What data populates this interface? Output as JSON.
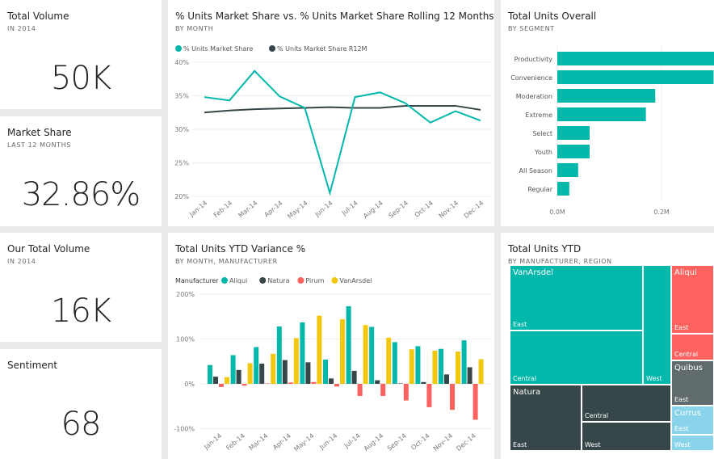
{
  "kpis": [
    {
      "title": "Total Volume",
      "subtitle": "IN 2014",
      "value": "50K"
    },
    {
      "title": "Market Share",
      "subtitle": "LAST 12 MONTHS",
      "value": "32.86%"
    },
    {
      "title": "Our Total Volume",
      "subtitle": "IN 2014",
      "value": "16K"
    },
    {
      "title": "Sentiment",
      "subtitle": "",
      "value": "68"
    }
  ],
  "colors": {
    "teal": "#01b8aa",
    "dark": "#374649",
    "red": "#fd625e",
    "yellow": "#f2c80f",
    "gray": "#5f6b6d",
    "lightblue": "#8ad4eb"
  },
  "chart_data": [
    {
      "type": "line",
      "title": "% Units Market Share vs. % Units Market Share Rolling 12 Months",
      "subtitle": "BY MONTH",
      "categories": [
        "Jan-14",
        "Feb-14",
        "Mar-14",
        "Apr-14",
        "May-14",
        "Jun-14",
        "Jul-14",
        "Aug-14",
        "Sep-14",
        "Oct-14",
        "Nov-14",
        "Dec-14"
      ],
      "yticks": [
        "40%",
        "35%",
        "30%",
        "25%",
        "20%"
      ],
      "ylim": [
        20,
        40
      ],
      "grid": true,
      "legend": "top-left",
      "series": [
        {
          "name": "% Units Market Share",
          "color": "#01b8aa",
          "values": [
            34.8,
            34.3,
            38.7,
            34.9,
            33.2,
            20.5,
            34.8,
            35.5,
            33.9,
            31.0,
            32.7,
            31.3
          ]
        },
        {
          "name": "% Units Market Share R12M",
          "color": "#374649",
          "values": [
            32.5,
            32.8,
            33.0,
            33.1,
            33.2,
            33.3,
            33.2,
            33.2,
            33.5,
            33.5,
            33.5,
            32.9
          ]
        }
      ]
    },
    {
      "type": "bar",
      "orientation": "horizontal",
      "title": "Total Units Overall",
      "subtitle": "BY SEGMENT",
      "categories": [
        "Productivity",
        "Convenience",
        "Moderation",
        "Extreme",
        "Select",
        "Youth",
        "All Season",
        "Regular"
      ],
      "values": [
        0.31,
        0.3,
        0.188,
        0.17,
        0.062,
        0.062,
        0.04,
        0.023
      ],
      "xticks": [
        "0.0M",
        "0.2M"
      ],
      "color": "#01b8aa",
      "grid": true
    },
    {
      "type": "bar",
      "title": "Total Units YTD Variance %",
      "subtitle": "BY MONTH, MANUFACTURER",
      "legend_title": "Manufacturer",
      "legend": "top-left",
      "categories": [
        "Jan-14",
        "Feb-14",
        "Mar-14",
        "Apr-14",
        "May-14",
        "Jun-14",
        "Jul-14",
        "Aug-14",
        "Sep-14",
        "Oct-14",
        "Nov-14",
        "Dec-14"
      ],
      "yticks": [
        "200%",
        "100%",
        "0%",
        "-100%"
      ],
      "ylim": [
        -100,
        200
      ],
      "grid": true,
      "series": [
        {
          "name": "Aliqui",
          "color": "#01b8aa",
          "values": [
            42,
            64,
            82,
            128,
            137,
            54,
            173,
            127,
            93,
            84,
            78,
            97
          ]
        },
        {
          "name": "Natura",
          "color": "#374649",
          "values": [
            16,
            31,
            45,
            53,
            48,
            12,
            29,
            8,
            1,
            4,
            21,
            37
          ]
        },
        {
          "name": "Pirum",
          "color": "#fd625e",
          "values": [
            -7,
            -4,
            1,
            3,
            4,
            -6,
            -27,
            -27,
            -37,
            -52,
            -58,
            -80
          ]
        },
        {
          "name": "VanArsdel",
          "color": "#f2c80f",
          "values": [
            15,
            46,
            67,
            102,
            152,
            144,
            131,
            103,
            77,
            74,
            72,
            55
          ]
        }
      ]
    },
    {
      "type": "treemap",
      "title": "Total Units YTD",
      "subtitle": "BY MANUFACTURER, REGION",
      "groups": [
        {
          "name": "VanArsdel",
          "regions": [
            "East",
            "Central",
            "West"
          ]
        },
        {
          "name": "Aliqui",
          "regions": [
            "East",
            "Central"
          ]
        },
        {
          "name": "Quibus",
          "regions": [
            "East"
          ]
        },
        {
          "name": "Natura",
          "regions": [
            "East",
            "Central",
            "West"
          ]
        },
        {
          "name": "Currus",
          "regions": [
            "East",
            "West"
          ]
        }
      ]
    }
  ]
}
